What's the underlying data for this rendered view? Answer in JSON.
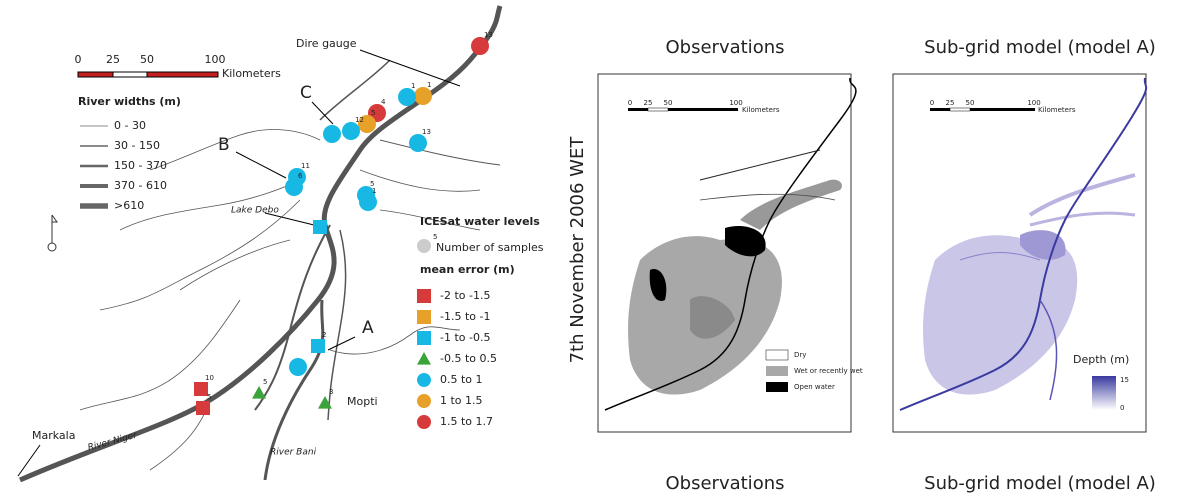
{
  "left_map": {
    "scale_bar": {
      "ticks": [
        "0",
        "25",
        "50",
        "100"
      ],
      "unit": "Kilometers"
    },
    "width_legend": {
      "title": "River widths (m)",
      "items": [
        "0 - 30",
        "30 - 150",
        "150 - 370",
        "370 - 610",
        ">610"
      ]
    },
    "places": {
      "dire_gauge": "Dire gauge",
      "c": "C",
      "b": "B",
      "a": "A",
      "lake_debo": "Lake Debo",
      "markala": "Markala",
      "river_niger": "River Niger",
      "river_bani": "River Bani",
      "mopti": "Mopti"
    },
    "icesat_legend": {
      "title": "ICESat water levels",
      "samples_example": "5",
      "samples_label": "Number of samples",
      "error_title": "mean error (m)",
      "items": [
        {
          "label": "-2 to -1.5",
          "shape": "square",
          "color": "#d63a3a"
        },
        {
          "label": "-1.5 to -1",
          "shape": "square",
          "color": "#e8a128"
        },
        {
          "label": "-1 to -0.5",
          "shape": "square",
          "color": "#17b9e4"
        },
        {
          "label": "-0.5 to 0.5",
          "shape": "triangle",
          "color": "#3aa33a"
        },
        {
          "label": "0.5 to 1",
          "shape": "circle",
          "color": "#17b9e4"
        },
        {
          "label": "1 to 1.5",
          "shape": "circle",
          "color": "#e8a128"
        },
        {
          "label": "1.5 to 1.7",
          "shape": "circle",
          "color": "#d63a3a"
        }
      ]
    },
    "sites": [
      {
        "count": "13",
        "class": 6
      },
      {
        "count": "1",
        "class": 5
      },
      {
        "count": "1",
        "class": 4
      },
      {
        "count": "4",
        "class": 6
      },
      {
        "count": "5",
        "class": 5
      },
      {
        "count": "12",
        "class": 4
      },
      {
        "class": 4
      },
      {
        "count": "13",
        "class": 4
      },
      {
        "count": "11",
        "class": 4
      },
      {
        "count": "6",
        "class": 4
      },
      {
        "count": "5",
        "class": 4
      },
      {
        "count": "1",
        "class": 4
      },
      {
        "class": 2
      },
      {
        "count": "2",
        "class": 2
      },
      {
        "class": 4
      },
      {
        "count": "10",
        "class": 0
      },
      {
        "count": "5",
        "class": 0
      },
      {
        "count": "5",
        "class": 3
      },
      {
        "count": "3",
        "class": 3
      }
    ]
  },
  "side_label": "7th November 2006 WET",
  "observations": {
    "title": "Observations",
    "bottom_title": "Observations",
    "scale_bar": {
      "ticks": [
        "0",
        "25",
        "50",
        "100"
      ],
      "unit": "Kilometers"
    },
    "legend": [
      "Dry",
      "Wet or recently wet",
      "Open water"
    ]
  },
  "model": {
    "title": "Sub-grid model (model A)",
    "bottom_title": "Sub-grid model (model A)",
    "scale_bar": {
      "ticks": [
        "0",
        "25",
        "50",
        "100"
      ],
      "unit": "Kilometers"
    },
    "depth_legend": {
      "title": "Depth (m)",
      "max": "15",
      "min": "0"
    }
  }
}
